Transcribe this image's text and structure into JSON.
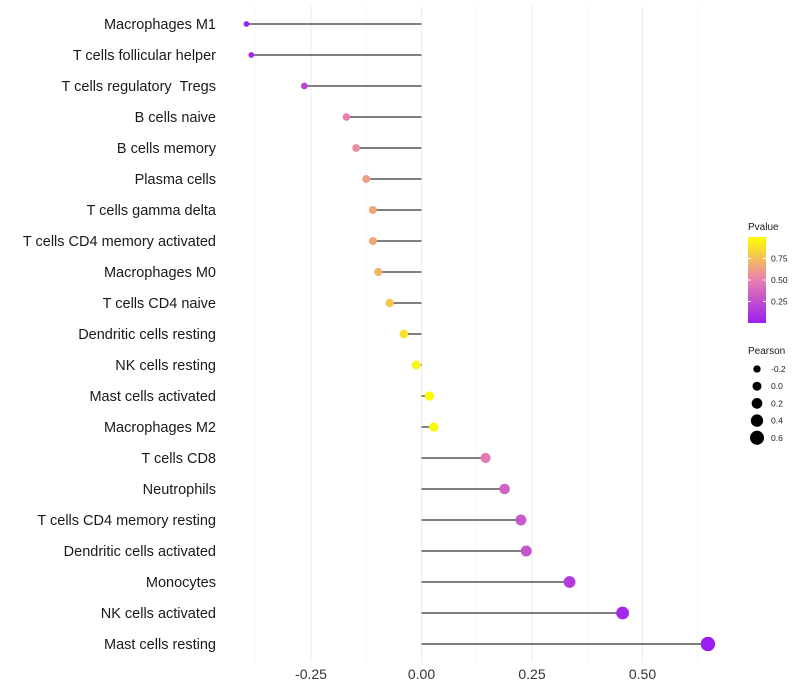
{
  "chart_data": {
    "type": "lollipop",
    "title": "",
    "xlabel": "",
    "ylabel": "",
    "xlim": [
      -0.38,
      0.67
    ],
    "x_ticks": [
      -0.25,
      0.0,
      0.25,
      0.5
    ],
    "x_tick_labels": [
      "-0.25",
      "0.00",
      "0.25",
      "0.50"
    ],
    "categories": [
      "Macrophages M1",
      "T cells follicular helper",
      "T cells regulatory  Tregs",
      "B cells naive",
      "B cells memory",
      "Plasma cells",
      "T cells gamma delta",
      "T cells CD4 memory activated",
      "Macrophages M0",
      "T cells CD4 naive",
      "Dendritic cells resting",
      "NK cells resting",
      "Mast cells activated",
      "Macrophages M2",
      "T cells CD8",
      "Neutrophils",
      "T cells CD4 memory resting",
      "Dendritic cells activated",
      "Monocytes",
      "NK cells activated",
      "Mast cells resting"
    ],
    "pearson": [
      -0.396,
      -0.385,
      -0.265,
      -0.17,
      -0.148,
      -0.125,
      -0.11,
      -0.11,
      -0.098,
      -0.072,
      -0.04,
      -0.012,
      0.018,
      0.028,
      0.145,
      0.188,
      0.225,
      0.237,
      0.335,
      0.455,
      0.648
    ],
    "pvalue": [
      0.02,
      0.03,
      0.2,
      0.5,
      0.55,
      0.62,
      0.66,
      0.66,
      0.7,
      0.78,
      0.88,
      0.96,
      0.98,
      0.98,
      0.48,
      0.35,
      0.3,
      0.28,
      0.15,
      0.05,
      0.0
    ],
    "legend_pvalue": {
      "title": "Pvalue",
      "ticks": [
        0.25,
        0.5,
        0.75
      ],
      "tick_labels": [
        "0.25",
        "0.50",
        "0.75"
      ],
      "range": [
        0.0,
        1.0
      ],
      "colors": [
        "#9a1ef0",
        "#e87fb0",
        "#ffff00"
      ]
    },
    "legend_pearson": {
      "title": "Pearson",
      "values": [
        -0.2,
        0.0,
        0.2,
        0.4,
        0.6
      ],
      "labels": [
        "-0.2",
        "0.0",
        "0.2",
        "0.4",
        "0.6"
      ]
    },
    "grid": true
  }
}
